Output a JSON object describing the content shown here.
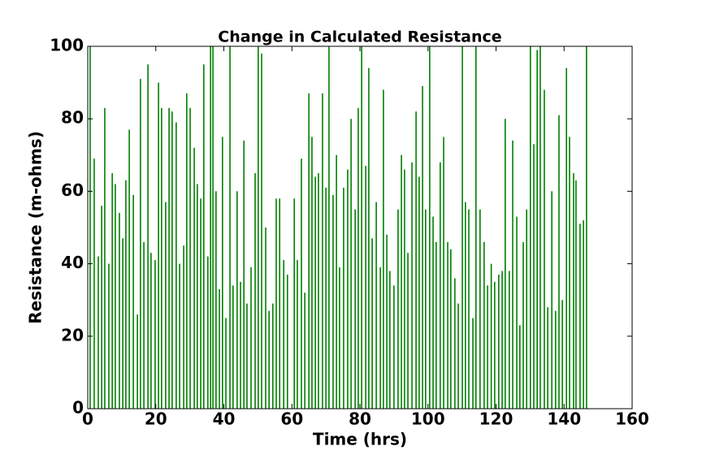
{
  "chart_data": {
    "type": "stem",
    "title": "Change in Calculated Resistance",
    "xlabel": "Time (hrs)",
    "ylabel": "Resistance (m-ohms)",
    "color": "#008000",
    "grid": false,
    "xlim": [
      0,
      160
    ],
    "xticks": [
      0,
      20,
      40,
      60,
      80,
      100,
      120,
      140,
      160
    ],
    "ylim": [
      0,
      100
    ],
    "yticks": [
      0,
      20,
      40,
      60,
      80,
      100
    ],
    "x": [
      0.7,
      1.9,
      3.1,
      4.1,
      5.0,
      6.2,
      7.2,
      8.1,
      9.3,
      10.3,
      11.2,
      12.2,
      13.4,
      14.6,
      15.5,
      16.5,
      17.7,
      18.6,
      19.8,
      20.8,
      21.7,
      22.9,
      23.9,
      24.8,
      26.0,
      27.0,
      28.2,
      29.1,
      30.1,
      31.3,
      32.2,
      33.2,
      34.1,
      35.3,
      36.1,
      36.8,
      37.7,
      38.7,
      39.6,
      40.6,
      41.8,
      42.7,
      43.9,
      44.9,
      45.9,
      46.8,
      48.0,
      49.2,
      50.1,
      51.1,
      52.3,
      53.3,
      54.4,
      55.4,
      56.4,
      57.6,
      58.7,
      60.7,
      61.6,
      62.8,
      63.8,
      65.0,
      65.9,
      66.9,
      67.8,
      69.0,
      70.0,
      70.9,
      72.1,
      73.1,
      74.0,
      75.2,
      76.4,
      77.4,
      78.6,
      79.5,
      80.5,
      81.7,
      82.6,
      83.6,
      84.8,
      86.0,
      86.9,
      87.9,
      88.8,
      90.0,
      91.2,
      92.2,
      93.1,
      94.1,
      95.3,
      96.5,
      97.4,
      98.4,
      99.3,
      100.5,
      101.5,
      102.4,
      103.6,
      104.6,
      105.8,
      106.7,
      107.9,
      108.9,
      110.1,
      111.0,
      112.0,
      113.2,
      114.1,
      115.3,
      116.5,
      117.5,
      118.6,
      119.6,
      120.8,
      121.8,
      122.7,
      123.9,
      124.9,
      126.1,
      127.0,
      128.0,
      129.0,
      130.1,
      131.1,
      132.1,
      133.0,
      134.2,
      135.2,
      136.4,
      137.5,
      138.5,
      139.5,
      140.7,
      141.6,
      142.8,
      143.5,
      144.7,
      145.7,
      146.6
    ],
    "values": [
      100,
      69,
      42,
      56,
      83,
      40,
      65,
      62,
      54,
      47,
      63,
      77,
      59,
      26,
      91,
      46,
      95,
      43,
      41,
      90,
      83,
      57,
      83,
      82,
      79,
      40,
      45,
      87,
      83,
      72,
      62,
      58,
      95,
      42,
      100,
      100,
      60,
      33,
      75,
      25,
      100,
      34,
      60,
      35,
      74,
      29,
      39,
      65,
      100,
      98,
      50,
      27,
      29,
      58,
      58,
      41,
      37,
      58,
      41,
      69,
      32,
      87,
      75,
      64,
      65,
      87,
      61,
      100,
      59,
      70,
      39,
      61,
      66,
      80,
      55,
      83,
      100,
      67,
      94,
      47,
      57,
      39,
      88,
      48,
      38,
      34,
      55,
      70,
      66,
      43,
      68,
      82,
      64,
      89,
      55,
      100,
      53,
      46,
      68,
      75,
      46,
      44,
      36,
      29,
      100,
      57,
      55,
      25,
      100,
      55,
      46,
      34,
      40,
      35,
      37,
      38,
      80,
      38,
      74,
      53,
      23,
      46,
      55,
      100,
      73,
      99,
      100,
      88,
      28,
      60,
      27,
      81,
      30,
      94,
      75,
      65,
      63,
      51,
      52,
      100
    ]
  }
}
